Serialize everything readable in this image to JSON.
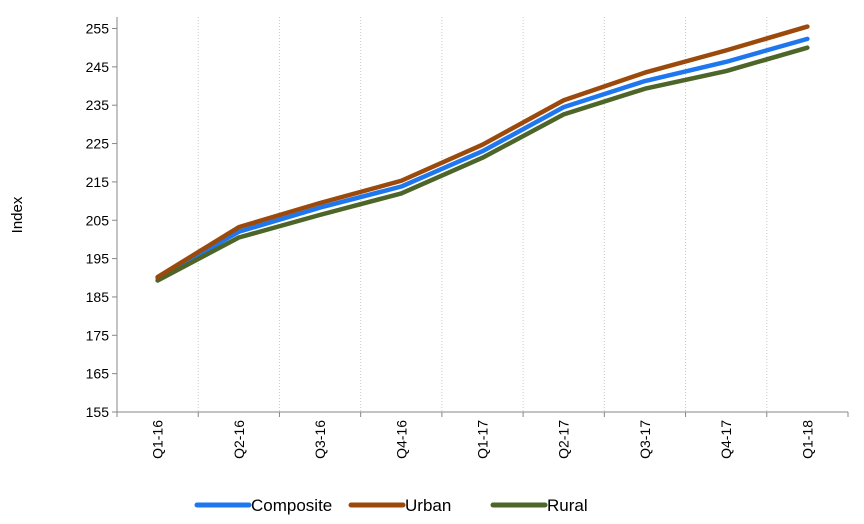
{
  "chart_data": {
    "type": "line",
    "title": "",
    "xlabel": "",
    "ylabel": "Index",
    "categories": [
      "Q1-16",
      "Q2-16",
      "Q3-16",
      "Q4-16",
      "Q1-17",
      "Q2-17",
      "Q3-17",
      "Q4-17",
      "Q1-18"
    ],
    "yticks": [
      155,
      165,
      175,
      185,
      195,
      205,
      215,
      225,
      235,
      245,
      255
    ],
    "ylim": [
      155,
      258
    ],
    "grid": "vertical dotted",
    "legend_position": "bottom",
    "series": [
      {
        "name": "Composite",
        "color": "#1f77f0",
        "values": [
          190.0,
          202.0,
          208.3,
          213.8,
          223.0,
          234.5,
          241.3,
          246.3,
          252.3
        ]
      },
      {
        "name": "Urban",
        "color": "#9c4a0c",
        "values": [
          190.2,
          203.2,
          209.5,
          215.3,
          224.7,
          236.3,
          243.5,
          249.3,
          255.5
        ]
      },
      {
        "name": "Rural",
        "color": "#4d6529",
        "values": [
          189.3,
          200.5,
          206.4,
          212.0,
          221.3,
          232.6,
          239.3,
          243.9,
          250.0
        ]
      }
    ]
  }
}
